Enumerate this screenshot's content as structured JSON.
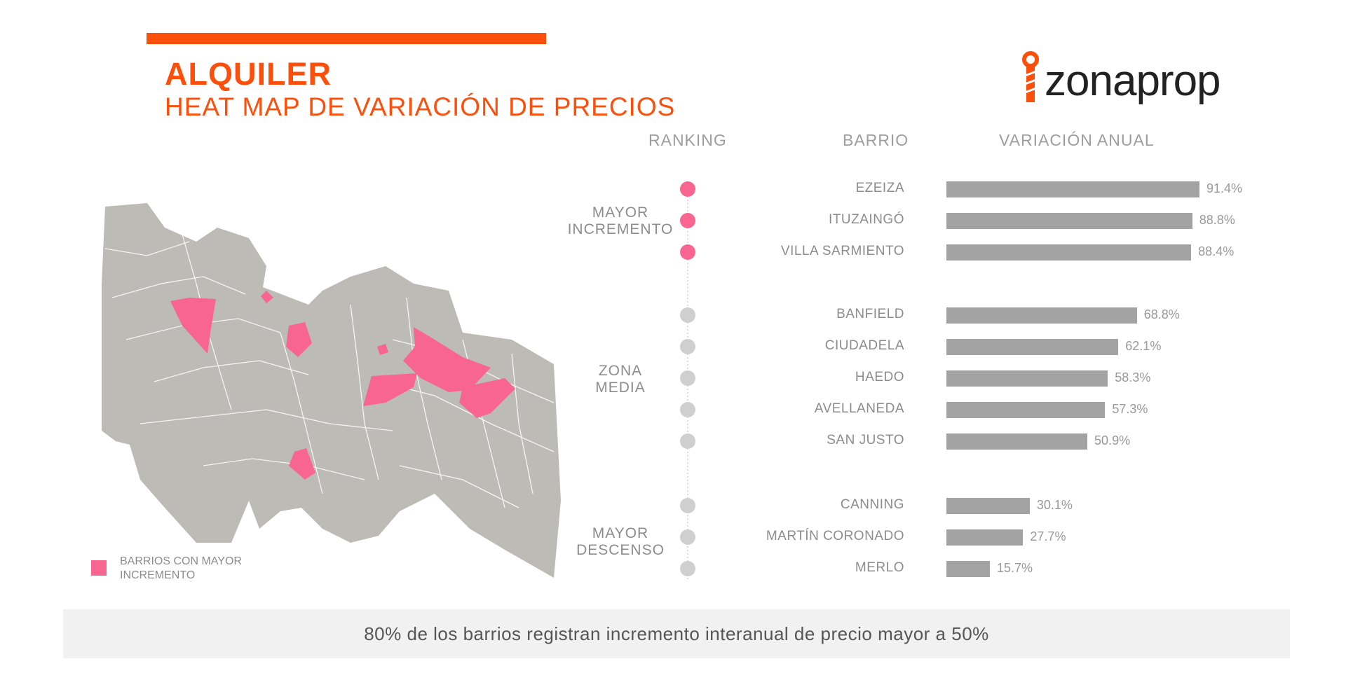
{
  "header": {
    "title": "ALQUILER",
    "subtitle": "HEAT MAP DE VARIACIÓN DE PRECIOS",
    "logo_text": "zonaprop"
  },
  "colors": {
    "accent": "#fc4f0c",
    "highlight": "#f86591",
    "bar": "#a3a3a3",
    "dot_neutral": "#cfcfcf",
    "map": "#bcbbb5"
  },
  "columns": {
    "ranking": "RANKING",
    "barrio": "BARRIO",
    "variacion": "VARIACIÓN ANUAL"
  },
  "groups": [
    {
      "line1": "MAYOR",
      "line2": "INCREMENTO"
    },
    {
      "line1": "ZONA",
      "line2": "MEDIA"
    },
    {
      "line1": "MAYOR",
      "line2": "DESCENSO"
    }
  ],
  "legend": {
    "line1": "BARRIOS CON MAYOR",
    "line2": "INCREMENTO"
  },
  "footer": "80% de los barrios registran incremento interanual de precio mayor a 50%",
  "chart_data": {
    "type": "bar",
    "orientation": "horizontal",
    "categories": [
      "EZEIZA",
      "ITUZAINGÓ",
      "VILLA SARMIENTO",
      "BANFIELD",
      "CIUDADELA",
      "HAEDO",
      "AVELLANEDA",
      "SAN JUSTO",
      "CANNING",
      "MARTÍN CORONADO",
      "MERLO"
    ],
    "values": [
      91.4,
      88.8,
      88.4,
      68.8,
      62.1,
      58.3,
      57.3,
      50.9,
      30.1,
      27.7,
      15.7
    ],
    "value_labels": [
      "91.4%",
      "88.8%",
      "88.4%",
      "68.8%",
      "62.1%",
      "58.3%",
      "57.3%",
      "50.9%",
      "30.1%",
      "27.7%",
      "15.7%"
    ],
    "group_index": [
      0,
      0,
      0,
      1,
      1,
      1,
      1,
      1,
      2,
      2,
      2
    ],
    "xlim": [
      0,
      100
    ]
  }
}
